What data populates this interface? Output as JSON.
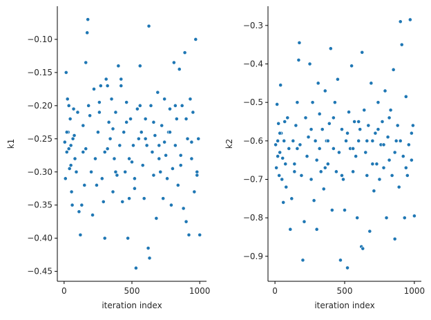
{
  "chart_data": [
    {
      "type": "scatter",
      "xlabel": "iteration index",
      "ylabel": "k1",
      "xlim": [
        -50,
        1050
      ],
      "ylim": [
        -0.465,
        -0.05
      ],
      "xticks": [
        0,
        500,
        1000
      ],
      "yticks": [
        -0.45,
        -0.4,
        -0.35,
        -0.3,
        -0.25,
        -0.2,
        -0.15,
        -0.1
      ],
      "xtick_labels": [
        "0",
        "500",
        "1000"
      ],
      "ytick_labels": [
        "−0.45",
        "−0.40",
        "−0.35",
        "−0.30",
        "−0.25",
        "−0.20",
        "−0.15",
        "−0.10"
      ],
      "marker_color": "#1f77b4",
      "grid": false,
      "x": [
        5,
        10,
        15,
        20,
        25,
        30,
        35,
        40,
        45,
        50,
        55,
        60,
        65,
        70,
        75,
        80,
        90,
        100,
        110,
        120,
        130,
        140,
        150,
        160,
        170,
        175,
        180,
        190,
        200,
        210,
        220,
        230,
        240,
        250,
        260,
        270,
        280,
        290,
        300,
        310,
        320,
        330,
        340,
        350,
        360,
        370,
        380,
        390,
        400,
        410,
        420,
        430,
        440,
        450,
        460,
        470,
        480,
        490,
        500,
        510,
        520,
        530,
        540,
        550,
        560,
        570,
        580,
        590,
        600,
        610,
        620,
        625,
        630,
        640,
        650,
        660,
        670,
        680,
        690,
        700,
        710,
        720,
        730,
        740,
        750,
        760,
        770,
        780,
        790,
        800,
        810,
        820,
        830,
        840,
        850,
        860,
        870,
        880,
        890,
        900,
        910,
        920,
        930,
        940,
        950,
        960,
        970,
        980,
        990,
        1000,
        20,
        35,
        50,
        140,
        160,
        260,
        300,
        320,
        360,
        380,
        420,
        460,
        480,
        520,
        560,
        600,
        660,
        700,
        740,
        780,
        820,
        860,
        900,
        940,
        980
      ],
      "y": [
        -0.255,
        -0.31,
        -0.15,
        -0.27,
        -0.19,
        -0.24,
        -0.265,
        -0.295,
        -0.22,
        -0.26,
        -0.33,
        -0.35,
        -0.25,
        -0.205,
        -0.245,
        -0.28,
        -0.3,
        -0.21,
        -0.36,
        -0.395,
        -0.35,
        -0.27,
        -0.32,
        -0.135,
        -0.09,
        -0.07,
        -0.2,
        -0.215,
        -0.3,
        -0.365,
        -0.175,
        -0.28,
        -0.32,
        -0.24,
        -0.195,
        -0.17,
        -0.31,
        -0.345,
        -0.4,
        -0.16,
        -0.265,
        -0.225,
        -0.25,
        -0.19,
        -0.33,
        -0.28,
        -0.21,
        -0.305,
        -0.14,
        -0.26,
        -0.17,
        -0.345,
        -0.24,
        -0.3,
        -0.195,
        -0.4,
        -0.34,
        -0.22,
        -0.285,
        -0.26,
        -0.31,
        -0.445,
        -0.205,
        -0.25,
        -0.14,
        -0.24,
        -0.29,
        -0.34,
        -0.22,
        -0.26,
        -0.415,
        -0.08,
        -0.43,
        -0.2,
        -0.27,
        -0.305,
        -0.245,
        -0.37,
        -0.18,
        -0.26,
        -0.3,
        -0.23,
        -0.34,
        -0.19,
        -0.275,
        -0.31,
        -0.24,
        -0.205,
        -0.35,
        -0.295,
        -0.135,
        -0.26,
        -0.22,
        -0.32,
        -0.145,
        -0.29,
        -0.2,
        -0.355,
        -0.12,
        -0.375,
        -0.25,
        -0.395,
        -0.19,
        -0.28,
        -0.21,
        -0.33,
        -0.1,
        -0.3,
        -0.25,
        -0.395,
        -0.24,
        -0.2,
        -0.29,
        -0.23,
        -0.265,
        -0.21,
        -0.27,
        -0.17,
        -0.235,
        -0.3,
        -0.16,
        -0.225,
        -0.28,
        -0.325,
        -0.2,
        -0.25,
        -0.225,
        -0.28,
        -0.255,
        -0.24,
        -0.2,
        -0.275,
        -0.22,
        -0.255,
        -0.305
      ]
    },
    {
      "type": "scatter",
      "xlabel": "iteration index",
      "ylabel": "k2",
      "xlim": [
        -50,
        1050
      ],
      "ylim": [
        -0.965,
        -0.25
      ],
      "xticks": [
        0,
        500,
        1000
      ],
      "yticks": [
        -0.9,
        -0.8,
        -0.7,
        -0.6,
        -0.5,
        -0.4,
        -0.3
      ],
      "xtick_labels": [
        "0",
        "500",
        "1000"
      ],
      "ytick_labels": [
        "−0.9",
        "−0.8",
        "−0.7",
        "−0.6",
        "−0.5",
        "−0.4",
        "−0.3"
      ],
      "marker_color": "#1f77b4",
      "grid": false,
      "x": [
        5,
        10,
        15,
        20,
        25,
        30,
        35,
        40,
        45,
        50,
        55,
        60,
        65,
        70,
        75,
        80,
        90,
        100,
        110,
        120,
        130,
        140,
        150,
        160,
        170,
        175,
        180,
        190,
        200,
        210,
        220,
        230,
        240,
        250,
        260,
        270,
        280,
        290,
        300,
        310,
        320,
        330,
        340,
        350,
        360,
        370,
        380,
        390,
        400,
        410,
        420,
        430,
        440,
        450,
        460,
        470,
        480,
        490,
        500,
        510,
        520,
        530,
        540,
        550,
        560,
        570,
        580,
        590,
        600,
        610,
        620,
        625,
        630,
        640,
        650,
        660,
        670,
        680,
        690,
        700,
        710,
        720,
        730,
        740,
        750,
        760,
        770,
        780,
        790,
        800,
        810,
        820,
        830,
        840,
        850,
        860,
        870,
        880,
        890,
        900,
        910,
        920,
        930,
        940,
        950,
        960,
        970,
        980,
        990,
        1000,
        20,
        35,
        50,
        140,
        160,
        260,
        300,
        320,
        360,
        380,
        420,
        460,
        480,
        520,
        560,
        600,
        660,
        700,
        740,
        780,
        820,
        860,
        900,
        940,
        980
      ],
      "y": [
        -0.61,
        -0.67,
        -0.505,
        -0.6,
        -0.555,
        -0.69,
        -0.63,
        -0.455,
        -0.58,
        -0.7,
        -0.645,
        -0.76,
        -0.6,
        -0.55,
        -0.66,
        -0.72,
        -0.54,
        -0.62,
        -0.83,
        -0.75,
        -0.6,
        -0.68,
        -0.56,
        -0.5,
        -0.39,
        -0.345,
        -0.61,
        -0.69,
        -0.91,
        -0.81,
        -0.54,
        -0.64,
        -0.59,
        -0.4,
        -0.7,
        -0.5,
        -0.755,
        -0.6,
        -0.83,
        -0.45,
        -0.62,
        -0.68,
        -0.57,
        -0.725,
        -0.47,
        -0.6,
        -0.66,
        -0.555,
        -0.36,
        -0.78,
        -0.62,
        -0.5,
        -0.68,
        -0.44,
        -0.63,
        -0.91,
        -0.57,
        -0.7,
        -0.78,
        -0.6,
        -0.93,
        -0.525,
        -0.62,
        -0.405,
        -0.68,
        -0.55,
        -0.64,
        -0.8,
        -0.6,
        -0.57,
        -0.875,
        -0.37,
        -0.88,
        -0.52,
        -0.63,
        -0.69,
        -0.56,
        -0.835,
        -0.45,
        -0.6,
        -0.73,
        -0.58,
        -0.66,
        -0.5,
        -0.7,
        -0.61,
        -0.55,
        -0.67,
        -0.47,
        -0.8,
        -0.59,
        -0.65,
        -0.52,
        -0.69,
        -0.415,
        -0.855,
        -0.6,
        -0.56,
        -0.72,
        -0.29,
        -0.35,
        -0.64,
        -0.8,
        -0.485,
        -0.69,
        -0.61,
        -0.285,
        -0.65,
        -0.56,
        -0.795,
        -0.64,
        -0.58,
        -0.7,
        -0.66,
        -0.62,
        -0.57,
        -0.65,
        -0.53,
        -0.67,
        -0.6,
        -0.54,
        -0.63,
        -0.69,
        -0.58,
        -0.62,
        -0.55,
        -0.6,
        -0.66,
        -0.57,
        -0.61,
        -0.54,
        -0.63,
        -0.6,
        -0.67,
        -0.58
      ]
    }
  ]
}
